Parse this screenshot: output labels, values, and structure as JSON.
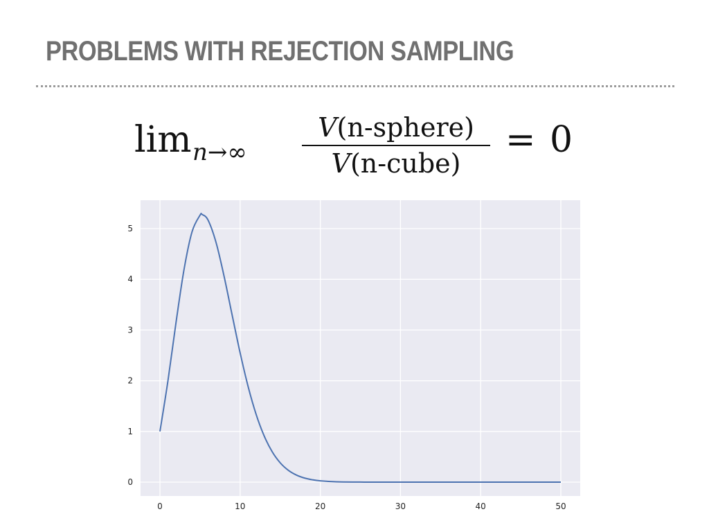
{
  "slide": {
    "title": "PROBLEMS WITH REJECTION SAMPLING"
  },
  "formula": {
    "lim": "lim",
    "subscript": "n→∞",
    "numerator_var": "V",
    "numerator_rest": "(n-sphere)",
    "denominator_var": "V",
    "denominator_rest": "(n-cube)",
    "equals": "=",
    "rhs": "0"
  },
  "chart_data": {
    "type": "line",
    "title": "",
    "xlabel": "",
    "ylabel": "",
    "xlim": [
      0,
      50
    ],
    "ylim": [
      0,
      5.3
    ],
    "xticks": [
      0,
      10,
      20,
      30,
      40,
      50
    ],
    "yticks": [
      0,
      1,
      2,
      3,
      4,
      5
    ],
    "grid": true,
    "legend": "none",
    "colors": {
      "line": "#4c72b0",
      "plot_bg": "#eaeaf2",
      "grid": "#ffffff"
    },
    "series": [
      {
        "x": [
          0,
          1,
          2,
          3,
          4,
          5,
          5.26,
          6,
          7,
          8,
          9,
          10,
          11,
          12,
          13,
          14,
          15,
          16,
          17,
          18,
          19,
          20,
          22,
          25,
          30,
          40,
          50
        ],
        "values": [
          1,
          2,
          3.142,
          4.189,
          4.935,
          5.264,
          5.278,
          5.168,
          4.725,
          4.059,
          3.299,
          2.55,
          1.884,
          1.335,
          0.911,
          0.599,
          0.381,
          0.235,
          0.141,
          0.082,
          0.047,
          0.026,
          0.0073,
          0.0009,
          2e-05,
          0,
          0
        ]
      }
    ]
  }
}
